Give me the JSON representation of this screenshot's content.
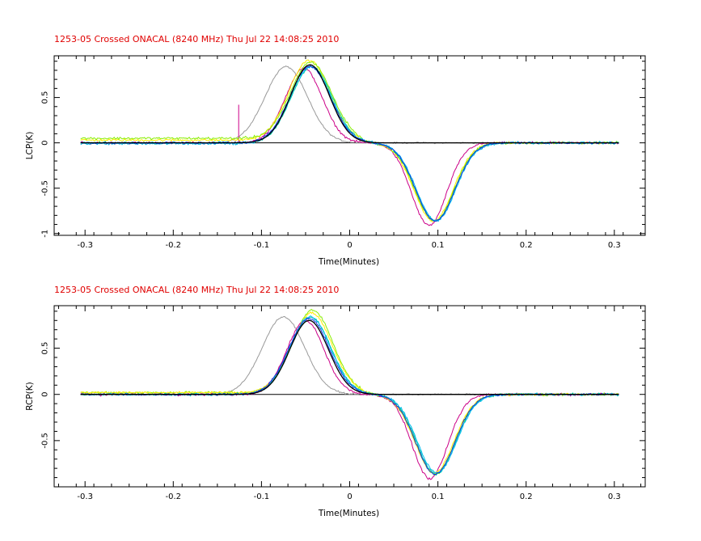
{
  "chart_data": [
    {
      "type": "line",
      "title": "1253-05 Crossed ONACAL (8240 MHz) Thu Jul 22 14:08:25 2010",
      "xlabel": "Time(Minutes)",
      "ylabel": "LCP(K)",
      "xlim": [
        -0.335,
        0.335
      ],
      "ylim": [
        -1.02,
        0.96
      ],
      "x_ticks": [
        "-0.3",
        "-0.2",
        "-0.1",
        "0",
        "0.1",
        "0.2",
        "0.3"
      ],
      "y_ticks": [
        "-1",
        "-0.5",
        "0",
        "0.5"
      ],
      "x_tick_values": [
        -0.3,
        -0.2,
        -0.1,
        0,
        0.1,
        0.2,
        0.3
      ],
      "y_tick_values": [
        -1,
        -0.5,
        0,
        0.5
      ],
      "grid": false,
      "legend": "none",
      "x_range": [
        -0.305,
        0.305
      ],
      "series": [
        {
          "color": "#999999",
          "baseline": 0.0,
          "pos_center": -0.072,
          "pos_peak": 0.84,
          "pos_width": 0.024,
          "neg_center": 0.0,
          "neg_peak": 0.0,
          "neg_width": 0.02,
          "noise": 0.012
        },
        {
          "color": "#cc0088",
          "baseline": 0.0,
          "pos_center": -0.052,
          "pos_peak": 0.82,
          "pos_width": 0.021,
          "neg_center": 0.09,
          "neg_peak": -0.91,
          "neg_width": 0.02,
          "noise": 0.018,
          "spike": {
            "x": -0.126,
            "y": 0.42
          }
        },
        {
          "color": "#ffee00",
          "baseline": 0.03,
          "pos_center": -0.046,
          "pos_peak": 0.88,
          "pos_width": 0.023,
          "neg_center": 0.095,
          "neg_peak": -0.86,
          "neg_width": 0.022,
          "noise": 0.018
        },
        {
          "color": "#88ee00",
          "baseline": 0.05,
          "pos_center": -0.044,
          "pos_peak": 0.84,
          "pos_width": 0.023,
          "neg_center": 0.096,
          "neg_peak": -0.86,
          "neg_width": 0.022,
          "noise": 0.02
        },
        {
          "color": "#00ccaa",
          "baseline": 0.0,
          "pos_center": -0.043,
          "pos_peak": 0.84,
          "pos_width": 0.023,
          "neg_center": 0.097,
          "neg_peak": -0.86,
          "neg_width": 0.022,
          "noise": 0.018
        },
        {
          "color": "#00bbee",
          "baseline": -0.01,
          "pos_center": -0.044,
          "pos_peak": 0.85,
          "pos_width": 0.023,
          "neg_center": 0.098,
          "neg_peak": -0.86,
          "neg_width": 0.022,
          "noise": 0.02
        },
        {
          "color": "#1133dd",
          "baseline": 0.0,
          "pos_center": -0.045,
          "pos_peak": 0.84,
          "pos_width": 0.023,
          "neg_center": 0.097,
          "neg_peak": -0.86,
          "neg_width": 0.022,
          "noise": 0.016
        },
        {
          "color": "#000000",
          "baseline": 0.0,
          "pos_center": -0.045,
          "pos_peak": 0.86,
          "pos_width": 0.022,
          "neg_center": 0.0,
          "neg_peak": 0.0,
          "neg_width": 0.02,
          "noise": 0.0
        }
      ]
    },
    {
      "type": "line",
      "title": "1253-05 Crossed ONACAL (8240 MHz) Thu Jul 22 14:08:25 2010",
      "xlabel": "Time(Minutes)",
      "ylabel": "RCP(K)",
      "xlim": [
        -0.335,
        0.335
      ],
      "ylim": [
        -1.0,
        0.96
      ],
      "x_ticks": [
        "-0.3",
        "-0.2",
        "-0.1",
        "0",
        "0.1",
        "0.2",
        "0.3"
      ],
      "y_ticks": [
        "-0.5",
        "0",
        "0.5"
      ],
      "x_tick_values": [
        -0.3,
        -0.2,
        -0.1,
        0,
        0.1,
        0.2,
        0.3
      ],
      "y_tick_values": [
        -0.5,
        0,
        0.5
      ],
      "grid": false,
      "legend": "none",
      "x_range": [
        -0.305,
        0.305
      ],
      "series": [
        {
          "color": "#999999",
          "baseline": 0.0,
          "pos_center": -0.075,
          "pos_peak": 0.84,
          "pos_width": 0.024,
          "neg_center": 0.0,
          "neg_peak": 0.0,
          "neg_width": 0.02,
          "noise": 0.012
        },
        {
          "color": "#cc0088",
          "baseline": 0.0,
          "pos_center": -0.05,
          "pos_peak": 0.8,
          "pos_width": 0.021,
          "neg_center": 0.091,
          "neg_peak": -0.91,
          "neg_width": 0.02,
          "noise": 0.02
        },
        {
          "color": "#88ee00",
          "baseline": 0.02,
          "pos_center": -0.042,
          "pos_peak": 0.89,
          "pos_width": 0.023,
          "neg_center": 0.097,
          "neg_peak": -0.86,
          "neg_width": 0.022,
          "noise": 0.02
        },
        {
          "color": "#ffee00",
          "baseline": 0.02,
          "pos_center": -0.043,
          "pos_peak": 0.86,
          "pos_width": 0.023,
          "neg_center": 0.096,
          "neg_peak": -0.85,
          "neg_width": 0.022,
          "noise": 0.018
        },
        {
          "color": "#00ccaa",
          "baseline": 0.0,
          "pos_center": -0.044,
          "pos_peak": 0.83,
          "pos_width": 0.023,
          "neg_center": 0.098,
          "neg_peak": -0.86,
          "neg_width": 0.022,
          "noise": 0.018
        },
        {
          "color": "#00bbee",
          "baseline": 0.0,
          "pos_center": -0.045,
          "pos_peak": 0.84,
          "pos_width": 0.023,
          "neg_center": 0.099,
          "neg_peak": -0.85,
          "neg_width": 0.022,
          "noise": 0.018
        },
        {
          "color": "#1133dd",
          "baseline": 0.0,
          "pos_center": -0.046,
          "pos_peak": 0.82,
          "pos_width": 0.023,
          "neg_center": 0.097,
          "neg_peak": -0.86,
          "neg_width": 0.022,
          "noise": 0.016
        },
        {
          "color": "#000000",
          "baseline": 0.0,
          "pos_center": -0.046,
          "pos_peak": 0.8,
          "pos_width": 0.022,
          "neg_center": 0.0,
          "neg_peak": 0.0,
          "neg_width": 0.02,
          "noise": 0.0
        }
      ]
    }
  ]
}
